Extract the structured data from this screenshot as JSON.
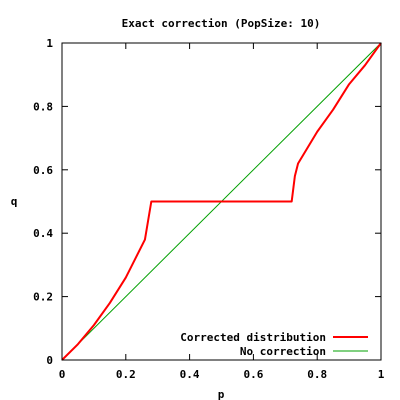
{
  "chart_data": {
    "type": "line",
    "title": "Exact correction (PopSize: 10)",
    "xlabel": "p",
    "ylabel": "q",
    "xlim": [
      0,
      1
    ],
    "ylim": [
      0,
      1
    ],
    "x_ticks": [
      "0",
      "0.2",
      "0.4",
      "0.6",
      "0.8",
      "1"
    ],
    "y_ticks": [
      "0",
      "0.2",
      "0.4",
      "0.6",
      "0.8",
      "1"
    ],
    "legend_position": "bottom-right",
    "grid": false,
    "series": [
      {
        "name": "Corrected distribution",
        "color": "#ff0000",
        "x": [
          0,
          0.05,
          0.1,
          0.15,
          0.2,
          0.23,
          0.26,
          0.27,
          0.28,
          0.72,
          0.73,
          0.74,
          0.77,
          0.8,
          0.85,
          0.9,
          0.95,
          1.0
        ],
        "y": [
          0,
          0.05,
          0.11,
          0.18,
          0.26,
          0.32,
          0.38,
          0.44,
          0.5,
          0.5,
          0.58,
          0.62,
          0.67,
          0.72,
          0.79,
          0.87,
          0.93,
          1.0
        ]
      },
      {
        "name": "No correction",
        "color": "#00a000",
        "x": [
          0,
          1
        ],
        "y": [
          0,
          1
        ]
      }
    ]
  }
}
